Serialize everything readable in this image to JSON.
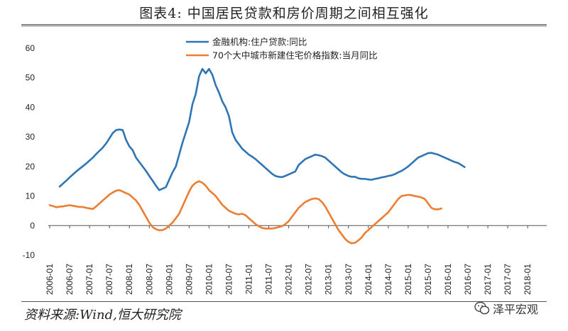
{
  "title": "图表4:   中国居民贷款和房价周期之间相互强化",
  "source": "资料来源:Wind,恒大研究院",
  "watermark": "泽平宏观",
  "chart_data": {
    "type": "line",
    "title": "图表4:   中国居民贷款和房价周期之间相互强化",
    "xlabel": "",
    "ylabel": "",
    "ylim": [
      -10,
      60
    ],
    "yticks": [
      -10,
      0,
      10,
      20,
      30,
      40,
      50,
      60
    ],
    "xticks": [
      "2006-01",
      "2006-07",
      "2007-01",
      "2007-07",
      "2008-01",
      "2008-07",
      "2009-01",
      "2009-07",
      "2010-01",
      "2010-07",
      "2011-01",
      "2011-07",
      "2012-01",
      "2012-07",
      "2013-01",
      "2013-07",
      "2014-01",
      "2014-07",
      "2015-01",
      "2015-07",
      "2016-01",
      "2016-07",
      "2017-01",
      "2017-07",
      "2018-01"
    ],
    "legend_position": "top-center",
    "series": [
      {
        "name": "金融机构:住户贷款:同比",
        "color": "#2E75B6",
        "start": "2006-04",
        "values": [
          13.2,
          14.2,
          15.2,
          16.3,
          17.3,
          18.3,
          19.2,
          20.1,
          21.0,
          22.0,
          23.0,
          24.2,
          25.3,
          26.4,
          27.8,
          29.5,
          31.3,
          32.3,
          32.5,
          32.3,
          29.0,
          26.8,
          25.5,
          23.0,
          21.5,
          20.0,
          18.5,
          16.8,
          15.2,
          13.5,
          12.0,
          12.5,
          13.0,
          15.5,
          18.0,
          20.0,
          24.0,
          28.0,
          31.5,
          35.0,
          41.0,
          44.5,
          50.5,
          53.0,
          51.5,
          53.0,
          51.0,
          47.5,
          45.0,
          42.0,
          40.0,
          37.0,
          31.5,
          29.0,
          27.5,
          26.0,
          25.0,
          24.0,
          23.3,
          22.5,
          21.5,
          20.5,
          19.5,
          18.5,
          17.5,
          16.8,
          16.5,
          16.4,
          16.8,
          17.3,
          17.8,
          18.3,
          20.5,
          21.5,
          22.5,
          23.0,
          23.5,
          24.0,
          23.8,
          23.5,
          23.0,
          22.0,
          21.0,
          20.0,
          19.0,
          18.0,
          17.3,
          16.8,
          16.5,
          16.5,
          16.0,
          15.8,
          15.8,
          15.6,
          15.5,
          15.8,
          16.0,
          16.3,
          16.5,
          16.8,
          17.0,
          17.4,
          18.0,
          18.5,
          19.2,
          20.0,
          21.0,
          22.0,
          23.0,
          23.5,
          24.0,
          24.5,
          24.6,
          24.3,
          24.0,
          23.5,
          23.0,
          22.5,
          22.0,
          21.5,
          21.2,
          20.5,
          19.8
        ]
      },
      {
        "name": "70个大中城市新建住宅价格指数:当月同比",
        "color": "#ED7D31",
        "start": "2006-01",
        "values": [
          6.9,
          6.6,
          6.2,
          6.4,
          6.5,
          6.7,
          6.9,
          6.7,
          6.5,
          6.3,
          6.3,
          6.0,
          5.8,
          5.6,
          6.5,
          7.5,
          8.5,
          9.5,
          10.5,
          11.2,
          11.8,
          12.0,
          11.5,
          11.0,
          10.5,
          9.5,
          8.5,
          7.0,
          5.0,
          3.0,
          1.0,
          -0.5,
          -1.2,
          -1.6,
          -1.5,
          -1.0,
          0.0,
          1.0,
          2.5,
          4.0,
          6.5,
          9.0,
          11.5,
          13.5,
          14.5,
          15.0,
          14.5,
          13.5,
          12.0,
          11.0,
          10.0,
          8.5,
          7.0,
          6.0,
          5.0,
          4.5,
          4.0,
          3.8,
          4.0,
          3.5,
          2.5,
          1.5,
          0.5,
          -0.2,
          -0.8,
          -1.0,
          -1.0,
          -1.0,
          -0.8,
          -0.5,
          -0.2,
          0.5,
          1.5,
          3.0,
          4.5,
          6.0,
          7.0,
          8.0,
          8.5,
          9.0,
          9.2,
          9.0,
          8.0,
          6.5,
          4.5,
          2.5,
          0.5,
          -1.5,
          -3.0,
          -4.5,
          -5.5,
          -6.0,
          -5.8,
          -5.0,
          -4.0,
          -2.5,
          -1.5,
          -0.5,
          0.5,
          1.5,
          2.5,
          3.5,
          4.5,
          6.0,
          7.5,
          9.0,
          10.0,
          10.2,
          10.4,
          10.3,
          10.0,
          9.8,
          9.5,
          9.0,
          7.5,
          6.0,
          5.5,
          5.5,
          5.8
        ]
      }
    ]
  }
}
